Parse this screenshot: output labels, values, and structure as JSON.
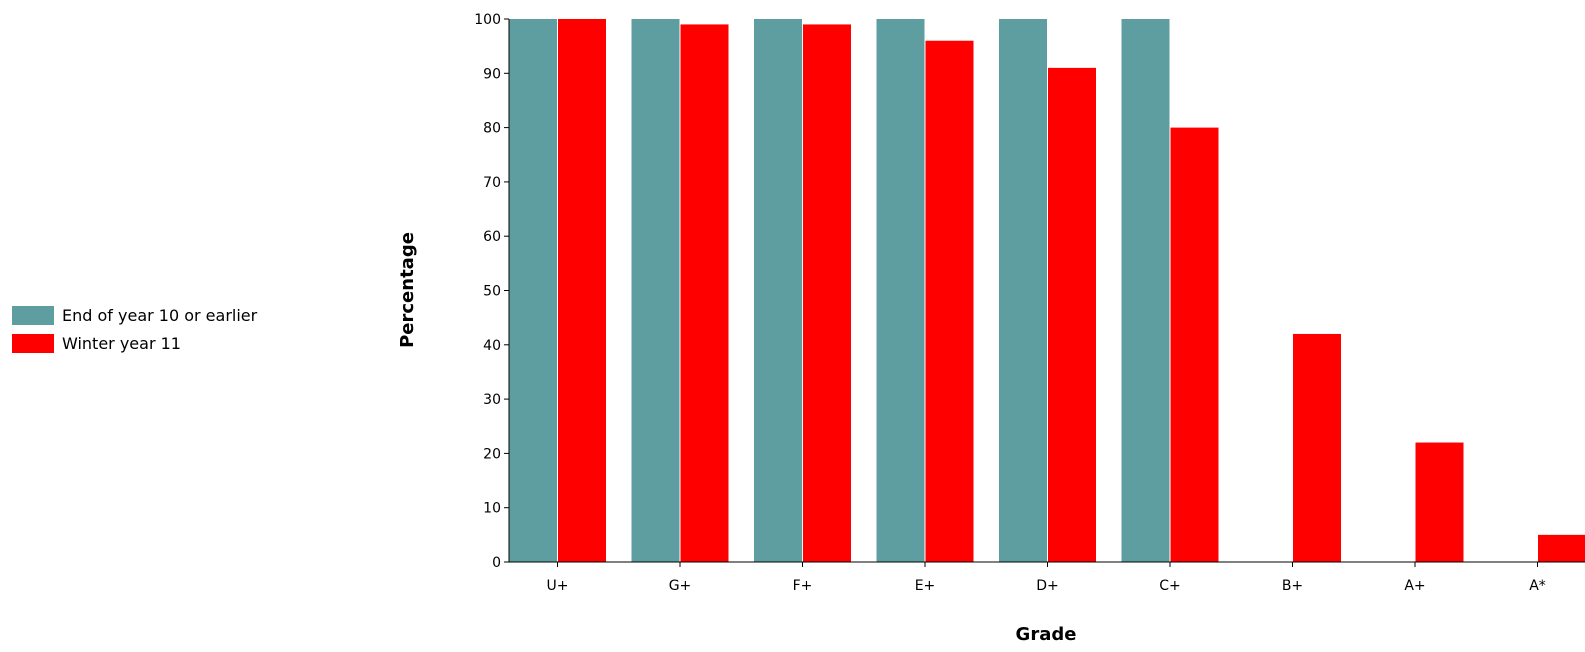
{
  "chart_data": {
    "type": "bar",
    "title": "",
    "xlabel": "Grade",
    "ylabel": "Percentage",
    "ylim": [
      0,
      100
    ],
    "yticks": [
      0,
      10,
      20,
      30,
      40,
      50,
      60,
      70,
      80,
      90,
      100
    ],
    "categories": [
      "U+",
      "G+",
      "F+",
      "E+",
      "D+",
      "C+",
      "B+",
      "A+",
      "A*"
    ],
    "series": [
      {
        "name": "End of year 10 or earlier",
        "color": "#5f9ea0",
        "values": [
          100,
          100,
          100,
          100,
          100,
          100,
          0,
          0,
          0
        ]
      },
      {
        "name": "Winter year 11",
        "color": "#ff0000",
        "values": [
          100,
          99,
          99,
          96,
          91,
          80,
          42,
          22,
          5
        ]
      }
    ],
    "grid": false,
    "legend_position": "left"
  }
}
